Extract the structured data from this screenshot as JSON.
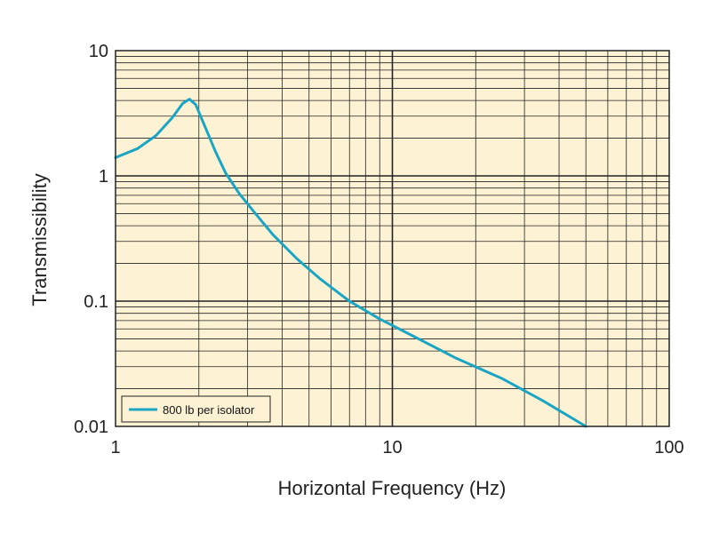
{
  "chart_data": {
    "type": "line",
    "title": "",
    "xlabel": "Horizontal Frequency (Hz)",
    "ylabel": "Transmissibility",
    "x_scale": "log",
    "y_scale": "log",
    "xlim": [
      1,
      100
    ],
    "ylim": [
      0.01,
      10
    ],
    "x_ticks": [
      "1",
      "10",
      "100"
    ],
    "y_ticks": [
      "0.01",
      "0.1",
      "1",
      "10"
    ],
    "grid": true,
    "legend_position": "bottom-left",
    "colors": {
      "plot_background": "#fdf3d4",
      "grid": "#222222",
      "series": "#1aa5c4"
    },
    "series": [
      {
        "name": "800 lb per isolator",
        "x": [
          1.0,
          1.2,
          1.4,
          1.6,
          1.75,
          1.85,
          1.95,
          2.1,
          2.3,
          2.5,
          2.8,
          3.2,
          3.7,
          4.5,
          5.5,
          7.0,
          9.0,
          12.0,
          17.0,
          25.0,
          35.0,
          50.0
        ],
        "y": [
          1.4,
          1.65,
          2.1,
          2.9,
          3.8,
          4.1,
          3.7,
          2.5,
          1.55,
          1.05,
          0.72,
          0.5,
          0.34,
          0.22,
          0.15,
          0.1,
          0.072,
          0.052,
          0.035,
          0.024,
          0.016,
          0.01
        ]
      }
    ]
  }
}
